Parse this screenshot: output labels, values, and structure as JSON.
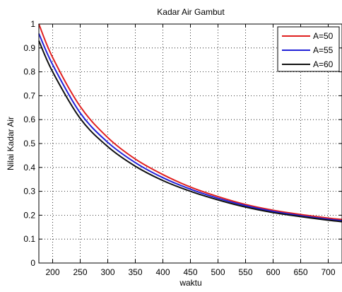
{
  "chart_data": {
    "type": "line",
    "title": "Kadar Air Gambut",
    "xlabel": "waktu",
    "ylabel": "Nilai Kadar Air",
    "xlim": [
      175,
      725
    ],
    "ylim": [
      0,
      1
    ],
    "x_ticks": [
      200,
      250,
      300,
      350,
      400,
      450,
      500,
      550,
      600,
      650,
      700
    ],
    "y_ticks": [
      0,
      0.1,
      0.2,
      0.3,
      0.4,
      0.5,
      0.6,
      0.7,
      0.8,
      0.9,
      1
    ],
    "grid": true,
    "legend_position": "top-right",
    "x": [
      175,
      200,
      250,
      300,
      350,
      400,
      450,
      500,
      550,
      600,
      650,
      700,
      725
    ],
    "series": [
      {
        "name": "A=50",
        "color": "#e0201f",
        "values": [
          1.0,
          0.86,
          0.655,
          0.525,
          0.435,
          0.37,
          0.318,
          0.278,
          0.245,
          0.221,
          0.203,
          0.188,
          0.182
        ]
      },
      {
        "name": "A=55",
        "color": "#2121d8",
        "values": [
          0.96,
          0.83,
          0.628,
          0.505,
          0.42,
          0.357,
          0.309,
          0.271,
          0.24,
          0.216,
          0.198,
          0.183,
          0.177
        ]
      },
      {
        "name": "A=60",
        "color": "#111111",
        "values": [
          0.93,
          0.8,
          0.605,
          0.487,
          0.405,
          0.345,
          0.3,
          0.264,
          0.234,
          0.211,
          0.194,
          0.179,
          0.173
        ]
      }
    ]
  }
}
